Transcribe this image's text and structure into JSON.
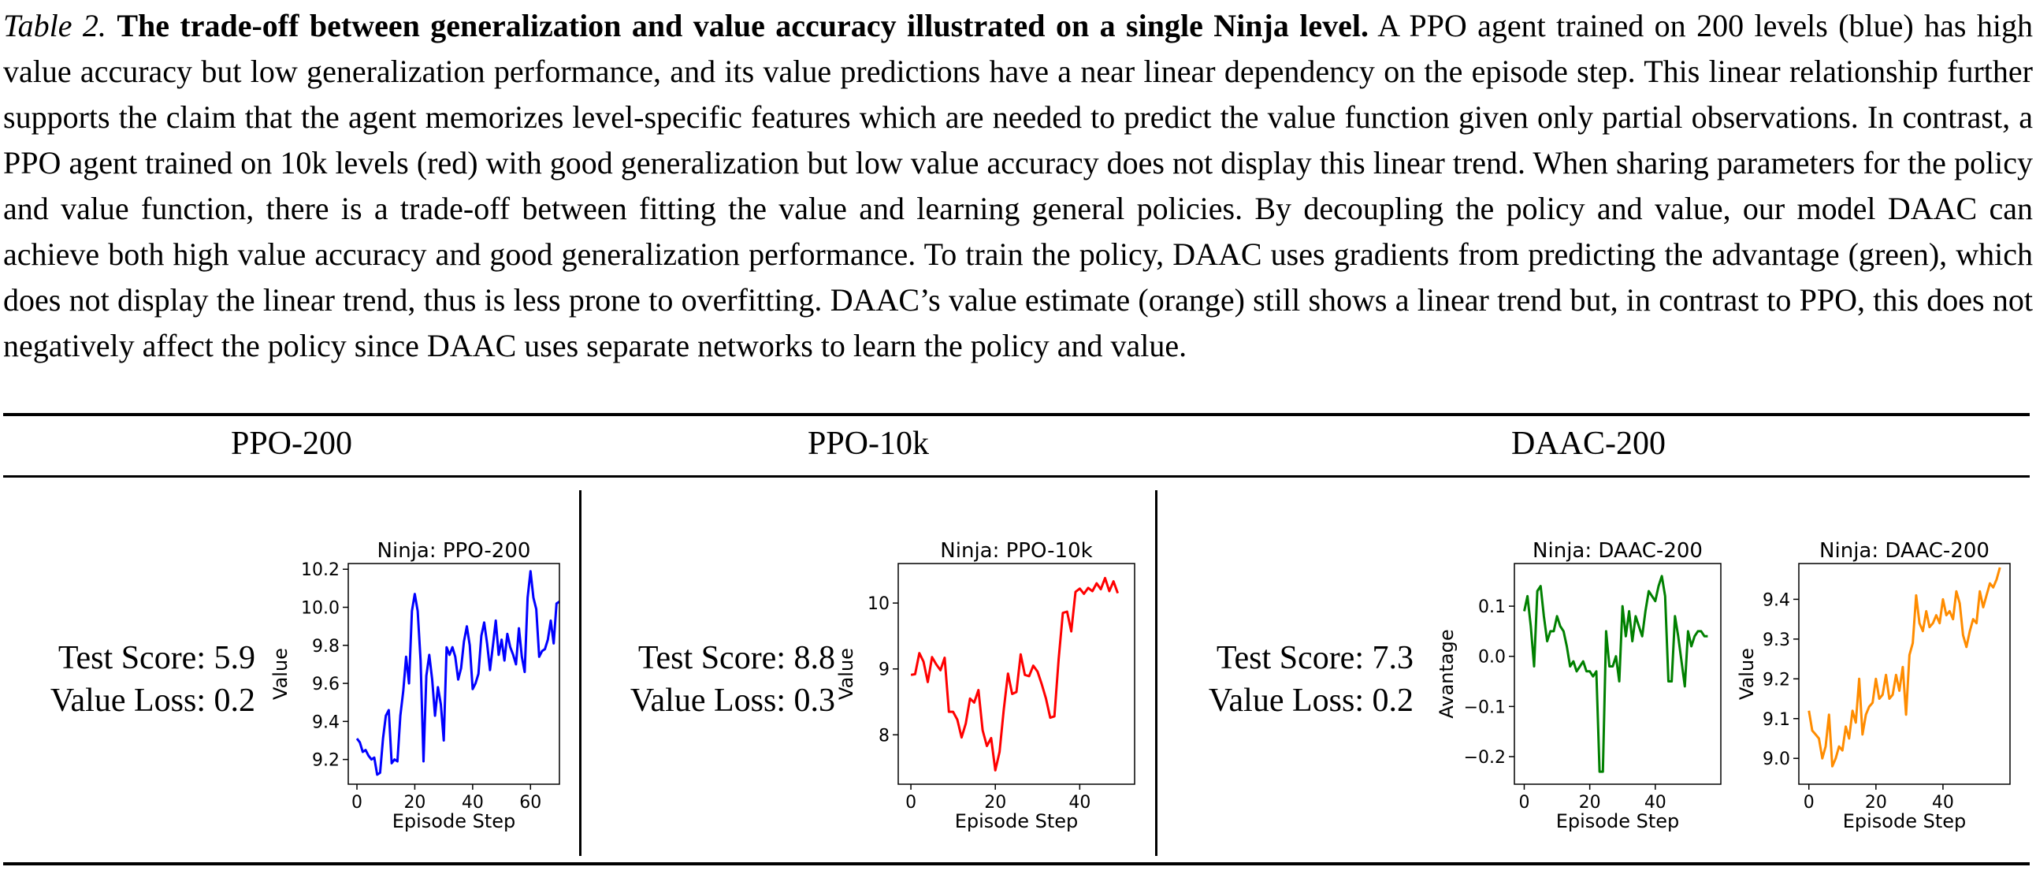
{
  "caption": {
    "label": "Table 2.",
    "title": "The trade-off between generalization and value accuracy illustrated on a single Ninja level.",
    "body": "A PPO agent trained on 200 levels (blue) has high value accuracy but low generalization performance, and its value predictions have a near linear dependency on the episode step. This linear relationship further supports the claim that the agent memorizes level-specific features which are needed to predict the value function given only partial observations. In contrast, a PPO agent trained on 10k levels (red) with good generalization but low value accuracy does not display this linear trend. When sharing parameters for the policy and value function, there is a trade-off between fitting the value and learning general policies. By decoupling the policy and value, our model DAAC can achieve both high value accuracy and good generalization performance. To train the policy, DAAC uses gradients from predicting the advantage (green), which does not display the linear trend, thus is less prone to overfitting. DAAC’s value estimate (orange) still shows a linear trend but, in contrast to PPO, this does not negatively affect the policy since DAAC uses separate networks to learn the policy and value."
  },
  "columns": [
    {
      "header": "PPO-200",
      "test_score": "Test Score: 5.9",
      "value_loss": "Value Loss: 0.2"
    },
    {
      "header": "PPO-10k",
      "test_score": "Test Score: 8.8",
      "value_loss": "Value Loss: 0.3"
    },
    {
      "header": "DAAC-200",
      "test_score": "Test Score: 7.3",
      "value_loss": "Value Loss: 0.2"
    }
  ],
  "chart_data": [
    {
      "type": "line",
      "title": "Ninja: PPO-200",
      "xlabel": "Episode Step",
      "ylabel": "Value",
      "color": "#0000ff",
      "xlim": [
        -3,
        70
      ],
      "ylim": [
        9.07,
        10.23
      ],
      "xticks": [
        0,
        20,
        40,
        60
      ],
      "yticks": [
        9.2,
        9.4,
        9.6,
        9.8,
        10.0,
        10.2
      ],
      "ytick_labels": [
        "9.2",
        "9.4",
        "9.6",
        "9.8",
        "10.0",
        "10.2"
      ],
      "y": [
        9.31,
        9.29,
        9.24,
        9.25,
        9.22,
        9.2,
        9.21,
        9.12,
        9.13,
        9.31,
        9.43,
        9.46,
        9.18,
        9.2,
        9.19,
        9.43,
        9.56,
        9.74,
        9.6,
        9.98,
        10.07,
        9.98,
        9.72,
        9.19,
        9.64,
        9.75,
        9.62,
        9.43,
        9.58,
        9.49,
        9.3,
        9.79,
        9.75,
        9.79,
        9.74,
        9.62,
        9.68,
        9.82,
        9.9,
        9.8,
        9.57,
        9.6,
        9.65,
        9.85,
        9.92,
        9.81,
        9.67,
        9.8,
        9.93,
        9.75,
        9.83,
        9.72,
        9.86,
        9.79,
        9.75,
        9.7,
        9.89,
        9.74,
        9.66,
        10.05,
        10.19,
        10.05,
        9.99,
        9.74,
        9.77,
        9.78,
        9.83,
        9.93,
        9.81,
        10.02,
        10.03
      ]
    },
    {
      "type": "line",
      "title": "Ninja: PPO-10k",
      "xlabel": "Episode Step",
      "ylabel": "Value",
      "color": "#ff0000",
      "xlim": [
        -3,
        53
      ],
      "ylim": [
        7.25,
        10.6
      ],
      "xticks": [
        0,
        20,
        40
      ],
      "yticks": [
        8,
        9,
        10
      ],
      "ytick_labels": [
        "8",
        "9",
        "10"
      ],
      "y": [
        8.91,
        8.92,
        9.24,
        9.11,
        8.8,
        9.18,
        9.07,
        8.98,
        9.17,
        8.35,
        8.35,
        8.23,
        7.96,
        8.17,
        8.55,
        8.49,
        8.68,
        8.07,
        7.83,
        7.95,
        7.46,
        7.74,
        8.38,
        8.93,
        8.62,
        8.65,
        9.22,
        8.91,
        8.89,
        9.05,
        8.96,
        8.77,
        8.55,
        8.26,
        8.28,
        9.15,
        9.85,
        9.87,
        9.57,
        10.17,
        10.22,
        10.14,
        10.23,
        10.18,
        10.3,
        10.21,
        10.38,
        10.18,
        10.33,
        10.15
      ]
    },
    {
      "type": "line",
      "title": "Ninja: DAAC-200",
      "xlabel": "Episode Step",
      "ylabel": "Avantage",
      "color": "#008000",
      "xlim": [
        -3,
        60
      ],
      "ylim": [
        -0.255,
        0.185
      ],
      "xticks": [
        0,
        20,
        40
      ],
      "yticks": [
        -0.2,
        -0.1,
        0.0,
        0.1
      ],
      "ytick_labels": [
        "−0.2",
        "−0.1",
        "0.0",
        "0.1"
      ],
      "y": [
        0.09,
        0.12,
        0.06,
        -0.02,
        0.13,
        0.14,
        0.08,
        0.03,
        0.05,
        0.05,
        0.08,
        0.06,
        0.05,
        0.02,
        -0.02,
        -0.01,
        -0.03,
        -0.02,
        -0.01,
        -0.03,
        -0.03,
        -0.04,
        -0.03,
        -0.23,
        -0.23,
        0.05,
        -0.02,
        -0.02,
        0.0,
        -0.05,
        0.1,
        0.04,
        0.09,
        0.03,
        0.08,
        0.06,
        0.04,
        0.09,
        0.13,
        0.12,
        0.11,
        0.14,
        0.16,
        0.12,
        -0.05,
        -0.05,
        0.08,
        0.04,
        -0.01,
        -0.06,
        0.05,
        0.02,
        0.04,
        0.05,
        0.05,
        0.04,
        0.04
      ]
    },
    {
      "type": "line",
      "title": "Ninja: DAAC-200",
      "xlabel": "Episode Step",
      "ylabel": "Value",
      "color": "#ff8c00",
      "xlim": [
        -3,
        60
      ],
      "ylim": [
        8.935,
        9.49
      ],
      "xticks": [
        0,
        20,
        40
      ],
      "yticks": [
        9.0,
        9.1,
        9.2,
        9.3,
        9.4
      ],
      "ytick_labels": [
        "9.0",
        "9.1",
        "9.2",
        "9.3",
        "9.4"
      ],
      "y": [
        9.12,
        9.07,
        9.06,
        9.05,
        9.0,
        9.03,
        9.11,
        8.98,
        9.0,
        9.03,
        9.02,
        9.08,
        9.05,
        9.12,
        9.09,
        9.2,
        9.06,
        9.11,
        9.13,
        9.14,
        9.2,
        9.15,
        9.16,
        9.21,
        9.15,
        9.16,
        9.21,
        9.17,
        9.23,
        9.11,
        9.26,
        9.29,
        9.41,
        9.34,
        9.32,
        9.37,
        9.33,
        9.34,
        9.36,
        9.34,
        9.4,
        9.36,
        9.37,
        9.35,
        9.42,
        9.39,
        9.31,
        9.28,
        9.32,
        9.35,
        9.34,
        9.42,
        9.38,
        9.41,
        9.44,
        9.43,
        9.45,
        9.48
      ]
    }
  ]
}
